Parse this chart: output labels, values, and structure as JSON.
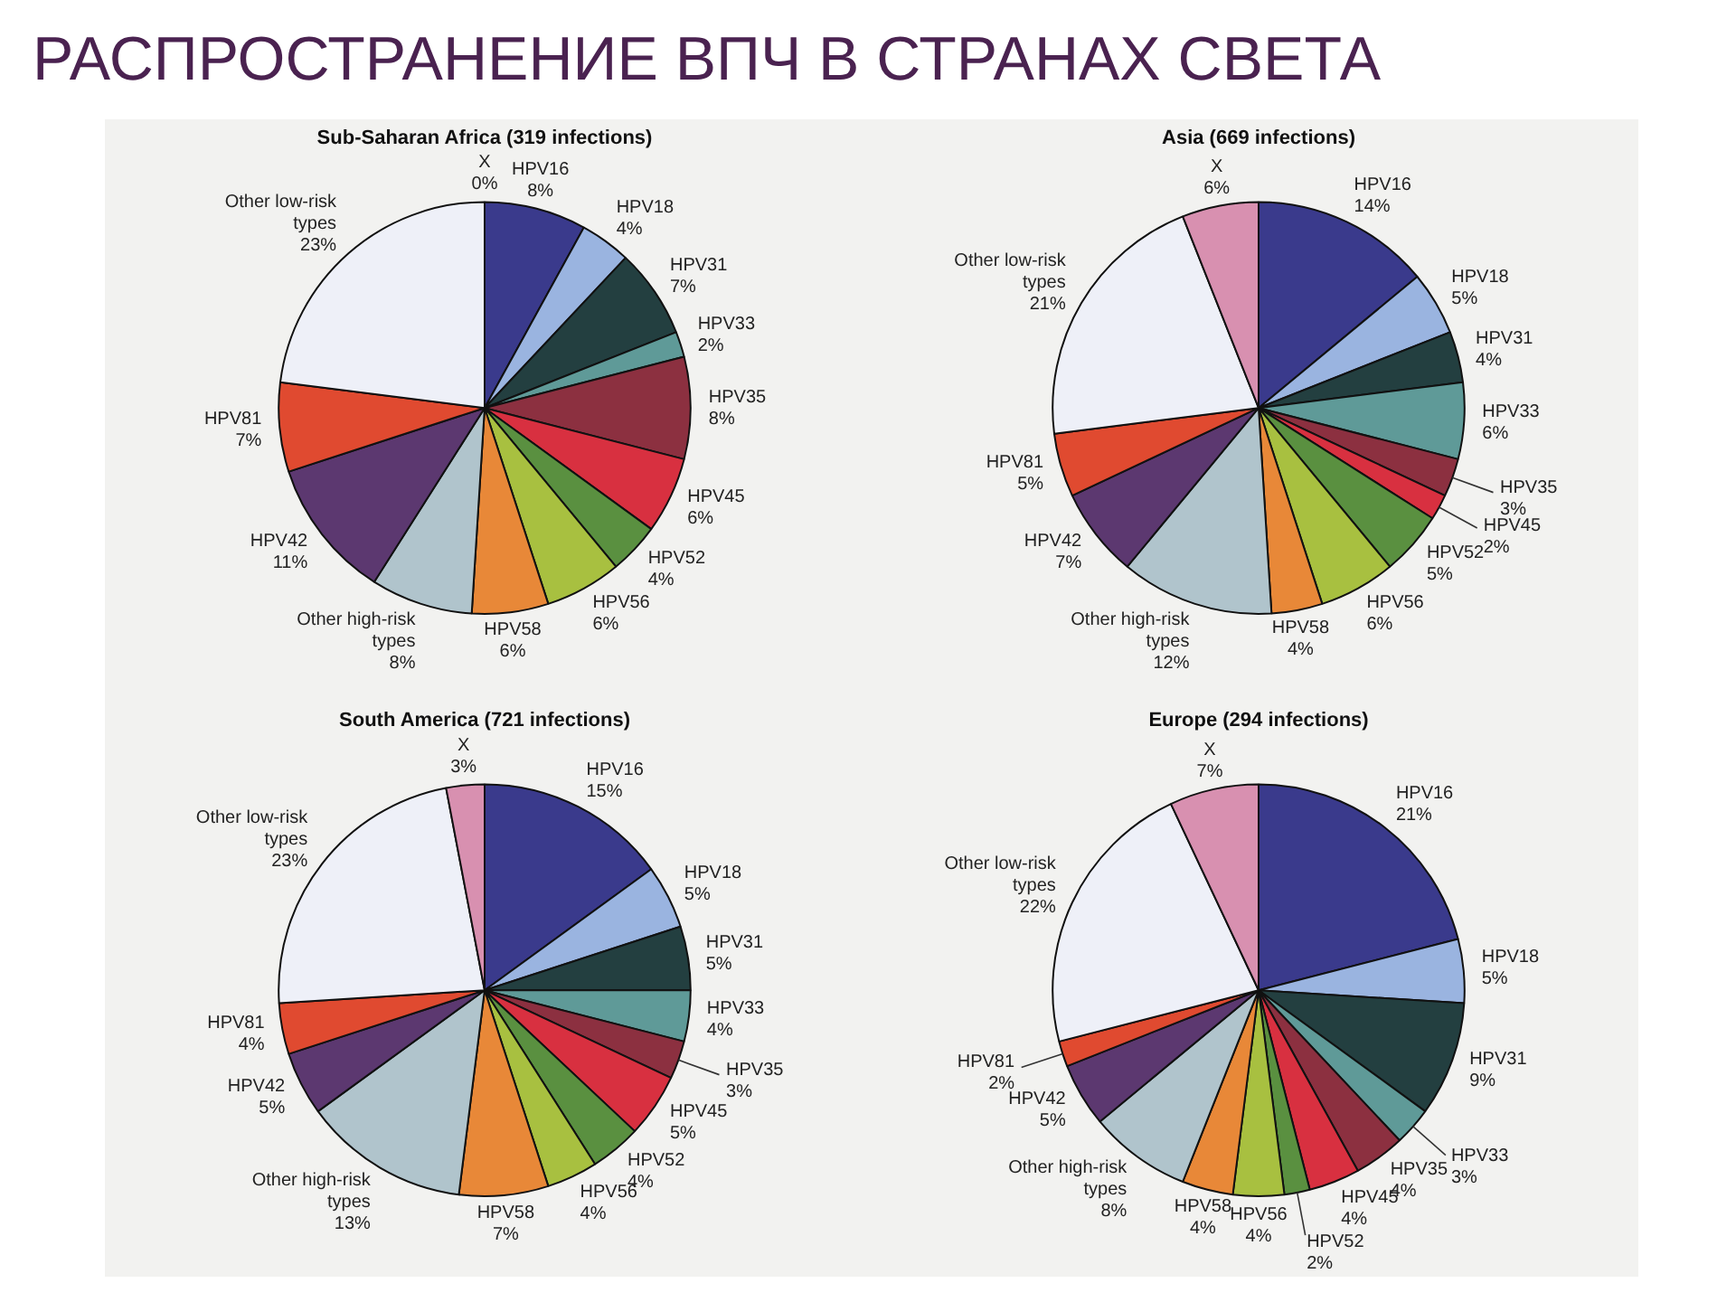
{
  "chart_data": [
    {
      "type": "pie",
      "title": "РАСПРОСТРАНЕНИЕ ВПЧ В СТРАНАХ СВЕТА",
      "subtitle": "Sub-Saharan Africa (319 infections)",
      "categories": [
        "HPV16",
        "HPV18",
        "HPV31",
        "HPV33",
        "HPV35",
        "HPV45",
        "HPV52",
        "HPV56",
        "HPV58",
        "Other high-risk types",
        "HPV42",
        "HPV81",
        "Other low-risk types",
        "X"
      ],
      "values": [
        8,
        4,
        7,
        2,
        8,
        6,
        4,
        6,
        6,
        8,
        11,
        7,
        23,
        0
      ],
      "value_labels": [
        "8%",
        "4%",
        "7%",
        "2%",
        "8%",
        "6%",
        "4%",
        "6%",
        "6%",
        "8%",
        "11%",
        "7%",
        "23%",
        "0%"
      ],
      "colors": [
        "#3a3a8c",
        "#9ab4e0",
        "#233f40",
        "#5f9a98",
        "#8c3040",
        "#d83040",
        "#5a9040",
        "#a8c040",
        "#e88838",
        "#b0c4cc",
        "#5c3870",
        "#e04a30",
        "#eef0f8",
        "#d890b0"
      ],
      "legend": false
    },
    {
      "type": "pie",
      "title": "Asia (669 infections)",
      "categories": [
        "HPV16",
        "HPV18",
        "HPV31",
        "HPV33",
        "HPV35",
        "HPV45",
        "HPV52",
        "HPV56",
        "HPV58",
        "Other high-risk types",
        "HPV42",
        "HPV81",
        "Other low-risk types",
        "X"
      ],
      "values": [
        14,
        5,
        4,
        6,
        3,
        2,
        5,
        6,
        4,
        12,
        7,
        5,
        21,
        6
      ],
      "value_labels": [
        "14%",
        "5%",
        "4%",
        "6%",
        "3%",
        "2%",
        "5%",
        "6%",
        "4%",
        "12%",
        "7%",
        "5%",
        "21%",
        "6%"
      ],
      "colors": [
        "#3a3a8c",
        "#9ab4e0",
        "#233f40",
        "#5f9a98",
        "#8c3040",
        "#d83040",
        "#5a9040",
        "#a8c040",
        "#e88838",
        "#b0c4cc",
        "#5c3870",
        "#e04a30",
        "#eef0f8",
        "#d890b0"
      ],
      "legend": false
    },
    {
      "type": "pie",
      "title": "South America (721 infections)",
      "categories": [
        "HPV16",
        "HPV18",
        "HPV31",
        "HPV33",
        "HPV35",
        "HPV45",
        "HPV52",
        "HPV56",
        "HPV58",
        "Other high-risk types",
        "HPV42",
        "HPV81",
        "Other low-risk types",
        "X"
      ],
      "values": [
        15,
        5,
        5,
        4,
        3,
        5,
        4,
        4,
        7,
        13,
        5,
        4,
        23,
        3
      ],
      "value_labels": [
        "15%",
        "5%",
        "5%",
        "4%",
        "3%",
        "5%",
        "4%",
        "4%",
        "7%",
        "13%",
        "5%",
        "4%",
        "23%",
        "3%"
      ],
      "colors": [
        "#3a3a8c",
        "#9ab4e0",
        "#233f40",
        "#5f9a98",
        "#8c3040",
        "#d83040",
        "#5a9040",
        "#a8c040",
        "#e88838",
        "#b0c4cc",
        "#5c3870",
        "#e04a30",
        "#eef0f8",
        "#d890b0"
      ],
      "legend": false
    },
    {
      "type": "pie",
      "title": "Europe (294 infections)",
      "categories": [
        "HPV16",
        "HPV18",
        "HPV31",
        "HPV33",
        "HPV35",
        "HPV45",
        "HPV52",
        "HPV56",
        "HPV58",
        "Other high-risk types",
        "HPV42",
        "HPV81",
        "Other low-risk types",
        "X"
      ],
      "values": [
        21,
        5,
        9,
        3,
        4,
        4,
        2,
        4,
        4,
        8,
        5,
        2,
        22,
        7
      ],
      "value_labels": [
        "21%",
        "5%",
        "9%",
        "3%",
        "4%",
        "4%",
        "2%",
        "4%",
        "4%",
        "8%",
        "5%",
        "2%",
        "22%",
        "7%"
      ],
      "colors": [
        "#3a3a8c",
        "#9ab4e0",
        "#233f40",
        "#5f9a98",
        "#8c3040",
        "#d83040",
        "#5a9040",
        "#a8c040",
        "#e88838",
        "#b0c4cc",
        "#5c3870",
        "#e04a30",
        "#eef0f8",
        "#d890b0"
      ],
      "legend": false
    }
  ]
}
